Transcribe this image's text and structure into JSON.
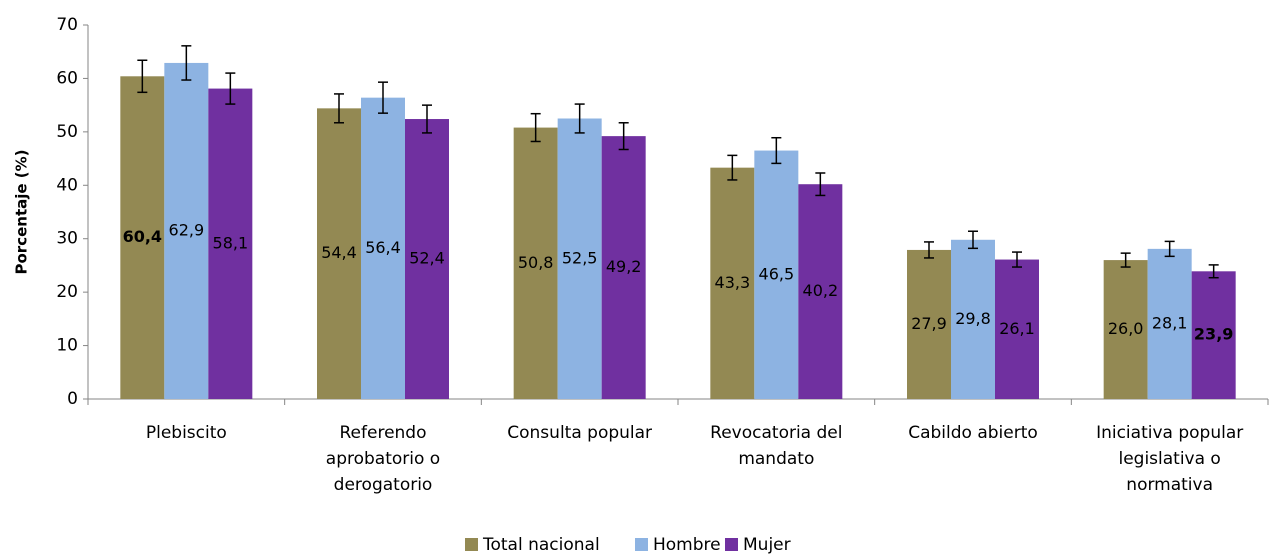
{
  "chart_data": {
    "type": "bar",
    "ylabel": "Porcentaje (%)",
    "categories": [
      "Plebiscito",
      "Referendo\naprobatorio o\nderogatorio",
      "Consulta popular",
      "Revocatoria del\nmandato",
      "Cabildo abierto",
      "Iniciativa popular\nlegislativa o\nnormativa"
    ],
    "series": [
      {
        "name": "Total nacional",
        "color": "#938953",
        "values": [
          60.4,
          54.4,
          50.8,
          43.3,
          27.9,
          26.0
        ],
        "value_labels": [
          "60,4",
          "54,4",
          "50,8",
          "43,3",
          "27,9",
          "26,0"
        ],
        "errors": [
          3.0,
          2.7,
          2.6,
          2.3,
          1.5,
          1.3
        ],
        "bold_labels": [
          true,
          false,
          false,
          false,
          false,
          false
        ]
      },
      {
        "name": "Hombre",
        "color": "#8db3e2",
        "values": [
          62.9,
          56.4,
          52.5,
          46.5,
          29.8,
          28.1
        ],
        "value_labels": [
          "62,9",
          "56,4",
          "52,5",
          "46,5",
          "29,8",
          "28,1"
        ],
        "errors": [
          3.2,
          2.9,
          2.7,
          2.4,
          1.6,
          1.4
        ],
        "bold_labels": [
          false,
          false,
          false,
          false,
          false,
          false
        ]
      },
      {
        "name": "Mujer",
        "color": "#7030a0",
        "values": [
          58.1,
          52.4,
          49.2,
          40.2,
          26.1,
          23.9
        ],
        "value_labels": [
          "58,1",
          "52,4",
          "49,2",
          "40,2",
          "26,1",
          "23,9"
        ],
        "errors": [
          2.9,
          2.6,
          2.5,
          2.1,
          1.4,
          1.2
        ],
        "bold_labels": [
          false,
          false,
          false,
          false,
          false,
          true
        ]
      }
    ],
    "ylim": [
      0,
      70
    ],
    "yticks": [
      0,
      10,
      20,
      30,
      40,
      50,
      60,
      70
    ],
    "legend": "bottom"
  }
}
